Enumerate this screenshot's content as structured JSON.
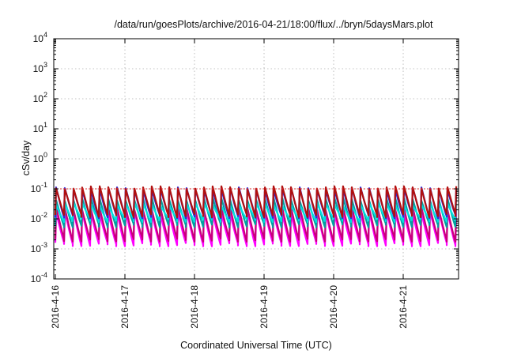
{
  "chart_data": {
    "type": "line",
    "title": "/data/run/goesPlots/archive/2016-04-21/18:00/flux/../bryn/5daysMars.plot",
    "xlabel": "Coordinated Universal Time (UTC)",
    "ylabel": "cSv/day",
    "y_scale": "log",
    "ylim": [
      0.0001,
      10000
    ],
    "xlim": [
      "2016-04-16",
      "2016-04-21T18:00"
    ],
    "y_ticks": [
      {
        "mant": "10",
        "exp": "-4"
      },
      {
        "mant": "10",
        "exp": "-3"
      },
      {
        "mant": "10",
        "exp": "-2"
      },
      {
        "mant": "10",
        "exp": "-1"
      },
      {
        "mant": "10",
        "exp": "0"
      },
      {
        "mant": "10",
        "exp": "1"
      },
      {
        "mant": "10",
        "exp": "2"
      },
      {
        "mant": "10",
        "exp": "3"
      },
      {
        "mant": "10",
        "exp": "4"
      }
    ],
    "x_ticks": [
      "2016-4-16",
      "2016-4-17",
      "2016-4-18",
      "2016-4-19",
      "2016-4-20",
      "2016-4-21"
    ],
    "grid": true,
    "reference_line": 0.1,
    "cycles_per_day": 8,
    "series": [
      {
        "color": "#ff00ff",
        "peak": 0.016,
        "trough": 0.0014
      },
      {
        "color": "#c8007a",
        "peak": 0.022,
        "trough": 0.002
      },
      {
        "color": "#00a0a0",
        "peak": 0.045,
        "trough": 0.006
      },
      {
        "color": "#00e0e0",
        "peak": 0.03,
        "trough": 0.009
      },
      {
        "color": "#2a2ae0",
        "peak": 0.1,
        "trough": 0.012
      },
      {
        "color": "#b01010",
        "peak": 0.11,
        "trough": 0.013
      }
    ]
  }
}
